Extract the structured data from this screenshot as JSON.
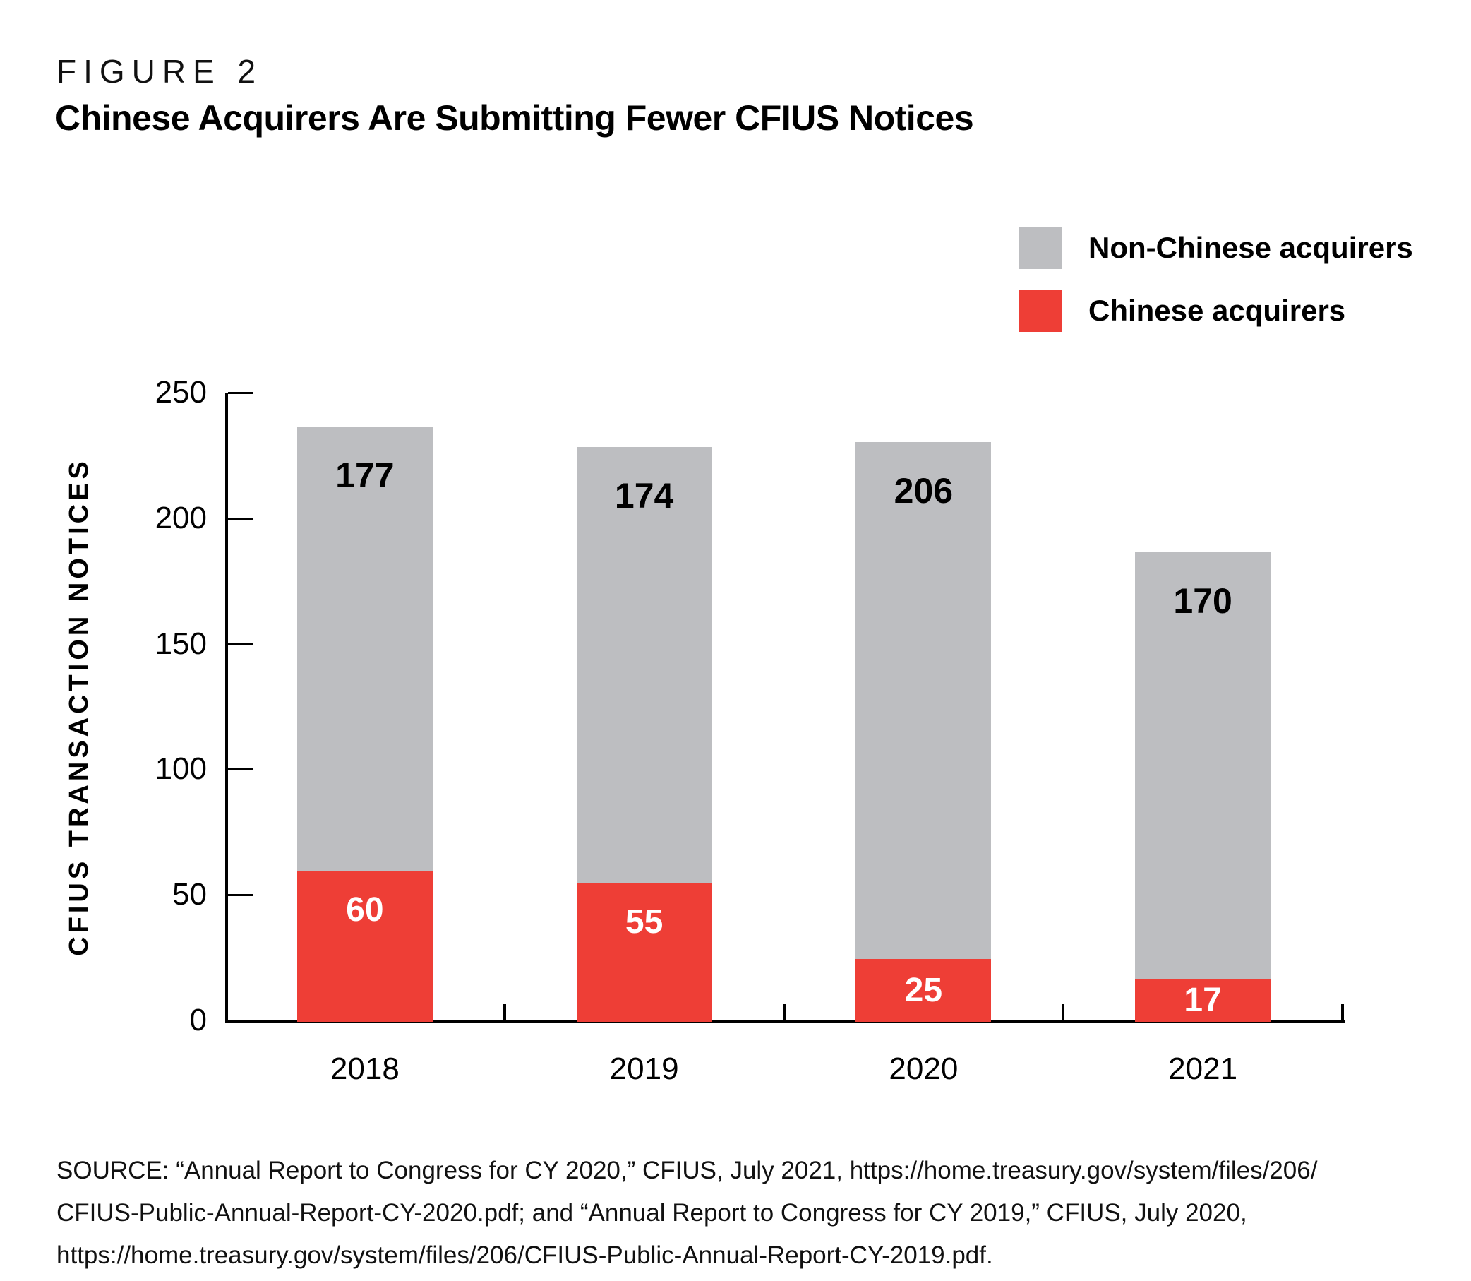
{
  "figure_label": "FIGURE 2",
  "title": "Chinese Acquirers Are Submitting Fewer CFIUS Notices",
  "colors": {
    "chinese_red": "#EE3E36",
    "non_chinese_gray": "#BDBEC1",
    "axis_black": "#000000",
    "background": "#FFFFFF"
  },
  "legend": {
    "items": [
      {
        "label": "Non-Chinese acquirers",
        "color": "#BDBEC1"
      },
      {
        "label": "Chinese acquirers",
        "color": "#EE3E36"
      }
    ]
  },
  "chart_data": {
    "type": "bar",
    "stacked": true,
    "categories": [
      "2018",
      "2019",
      "2020",
      "2021"
    ],
    "series": [
      {
        "name": "Chinese acquirers",
        "color": "#EE3E36",
        "label_color": "#FFFFFF",
        "values": [
          60,
          55,
          25,
          17
        ]
      },
      {
        "name": "Non-Chinese acquirers",
        "color": "#BDBEC1",
        "label_color": "#000000",
        "values": [
          177,
          174,
          206,
          170
        ]
      }
    ],
    "totals": [
      237,
      229,
      231,
      187
    ],
    "title": "Chinese Acquirers Are Submitting Fewer CFIUS Notices",
    "xlabel": "",
    "ylabel": "CFIUS TRANSACTION NOTICES",
    "yticks": [
      0,
      50,
      100,
      150,
      200,
      250
    ],
    "ylim": [
      0,
      250
    ],
    "grid": false,
    "legend_position": "top-right"
  },
  "source_lines": [
    "SOURCE: “Annual Report to Congress for CY 2020,” CFIUS, July 2021, https://home.treasury.gov/system/files/206/",
    "CFIUS-Public-Annual-Report-CY-2020.pdf; and “Annual Report to Congress for CY 2019,” CFIUS, July 2020,",
    "https://home.treasury.gov/system/files/206/CFIUS-Public-Annual-Report-CY-2019.pdf."
  ]
}
